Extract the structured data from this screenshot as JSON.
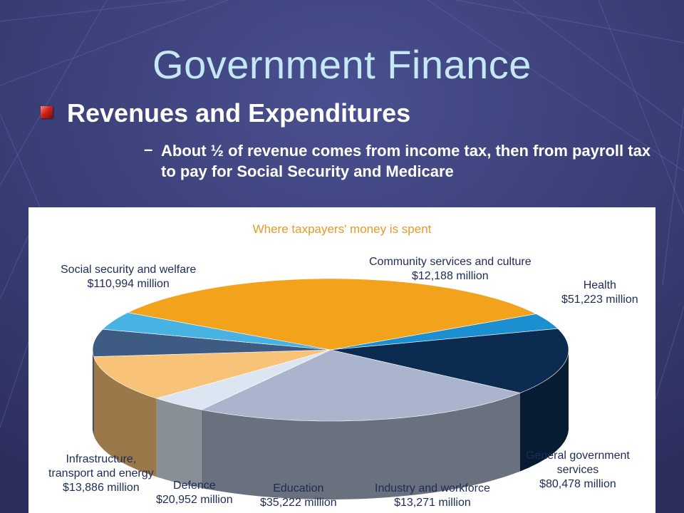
{
  "slide": {
    "title": "Government Finance",
    "heading": "Revenues and Expenditures",
    "dash": "–",
    "point": "About ½ of revenue comes from income tax, then from payroll tax to pay for Social Security and Medicare"
  },
  "chart_data": {
    "type": "pie",
    "title": "Where taxpayers' money is spent",
    "slices": [
      {
        "name": "Social security and welfare",
        "value_label": "$110,994 million",
        "value": 110994,
        "color": "#f3a21b"
      },
      {
        "name": "Community services and culture",
        "value_label": "$12,188 million",
        "value": 12188,
        "color": "#1c8fd0"
      },
      {
        "name": "Health",
        "value_label": "$51,223 million",
        "value": 51223,
        "color": "#0b2b50"
      },
      {
        "name": "General government services",
        "value_label": "$80,478 million",
        "value": 80478,
        "color": "#aab4cc"
      },
      {
        "name": "Industry and workforce",
        "value_label": "$13,271 million",
        "value": 13271,
        "color": "#dce6f2"
      },
      {
        "name": "Education",
        "value_label": "$35,222 million",
        "value": 35222,
        "color": "#f8c278"
      },
      {
        "name": "Defence",
        "value_label": "$20,952 million",
        "value": 20952,
        "color": "#3d5b83"
      },
      {
        "name": "Infrastructure, transport and energy",
        "value_label": "$13,886 million",
        "value": 13886,
        "color": "#48b2e3"
      }
    ]
  }
}
